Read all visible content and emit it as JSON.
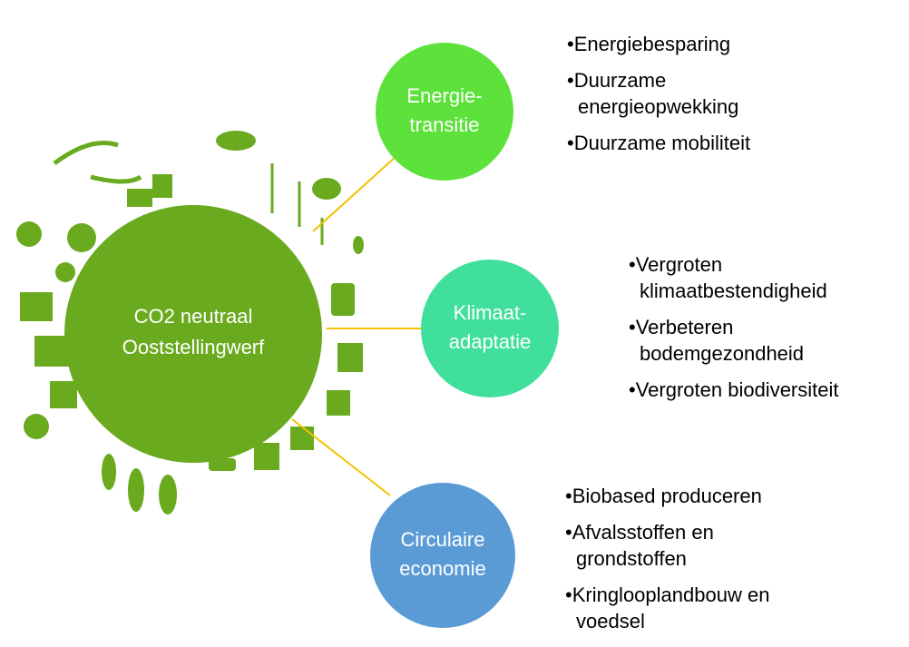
{
  "center": {
    "lines": [
      "CO2 neutraal",
      "Ooststellingwerf"
    ]
  },
  "nodes": [
    {
      "label": [
        "Energie-",
        "transitie"
      ],
      "color": "#5ce23a",
      "items": [
        [
          "•Energiebesparing"
        ],
        [
          "•Duurzame",
          "energieopwekking"
        ],
        [
          "•Duurzame mobiliteit"
        ]
      ]
    },
    {
      "label": [
        "Klimaat-",
        "adaptatie"
      ],
      "color": "#40e09c",
      "items": [
        [
          "•Vergroten",
          "klimaatbestendigheid"
        ],
        [
          "•Verbeteren",
          "bodemgezondheid"
        ],
        [
          "•Vergroten biodiversiteit"
        ]
      ]
    },
    {
      "label": [
        "Circulaire",
        "economie"
      ],
      "color": "#5b9bd5",
      "items": [
        [
          "•Biobased produceren"
        ],
        [
          "•Afvalsstoffen en",
          "grondstoffen"
        ],
        [
          "•Kringlooplandbouw en",
          "voedsel"
        ]
      ]
    }
  ]
}
